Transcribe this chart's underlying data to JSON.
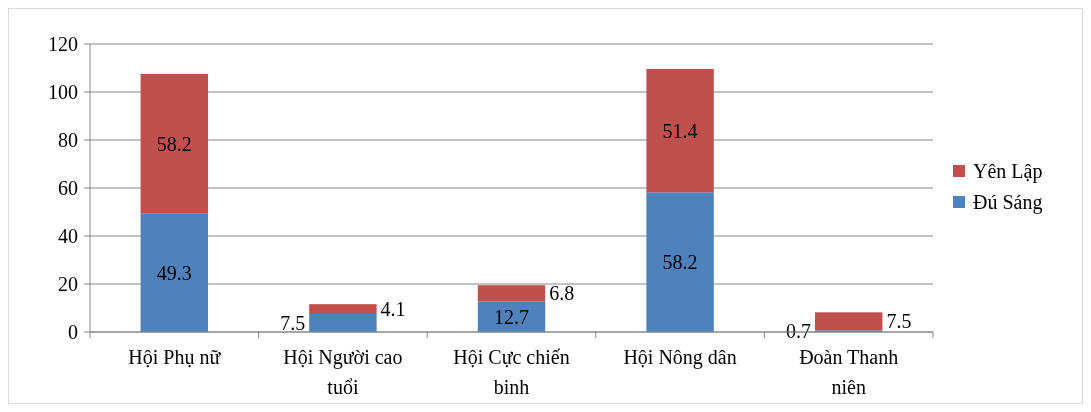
{
  "chart_data": {
    "type": "bar",
    "stacked": true,
    "categories": [
      "Hội Phụ nữ",
      "Hội Người cao tuổi",
      "Hội Cực chiến binh",
      "Hội Nông dân",
      "Đoàn Thanh niên"
    ],
    "series": [
      {
        "name": "Đú Sáng",
        "color": "#4f81bd",
        "values": [
          49.3,
          7.5,
          12.7,
          58.2,
          0.7
        ]
      },
      {
        "name": "Yên Lập",
        "color": "#c0504d",
        "values": [
          58.2,
          4.1,
          6.8,
          51.4,
          7.5
        ]
      }
    ],
    "ylim": [
      0,
      120
    ],
    "yticks": [
      0,
      20,
      40,
      60,
      80,
      100,
      120
    ],
    "grid": "y",
    "legend": "right",
    "data_labels": true
  }
}
